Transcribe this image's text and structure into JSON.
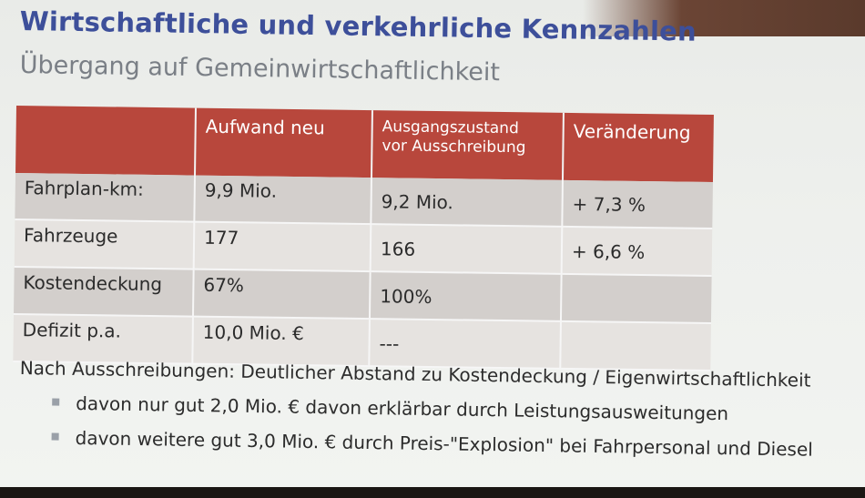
{
  "slide": {
    "title": "Wirtschaftliche und verkehrliche Kennzahlen",
    "subtitle": "Übergang auf Gemeinwirtschaftlichkeit"
  },
  "table": {
    "headers": {
      "label": "",
      "neu": "Aufwand neu",
      "alt_line1": "Ausgangszustand",
      "alt_line2": "vor Ausschreibung",
      "chg": "Veränderung"
    },
    "rows": [
      {
        "label": "Fahrplan-km:",
        "neu": "9,9 Mio.",
        "alt": "9,2 Mio.",
        "chg": "+ 7,3 %"
      },
      {
        "label": "Fahrzeuge",
        "neu": "177",
        "alt": "166",
        "chg": "+ 6,6 %"
      },
      {
        "label": "Kostendeckung",
        "neu": "67%",
        "alt": "100%",
        "chg": ""
      },
      {
        "label": "Defizit p.a.",
        "neu": "10,0 Mio. €",
        "alt": "---",
        "chg": ""
      }
    ]
  },
  "notes": {
    "intro": "Nach Ausschreibungen: Deutlicher Abstand zu Kostendeckung / Eigenwirtschaftlichkeit",
    "bullets": [
      "davon nur gut 2,0 Mio. € davon erklärbar durch Leistungsausweitungen",
      "davon weitere gut 3,0 Mio. € durch Preis-\"Explosion\" bei Fahrpersonal und Diesel"
    ]
  }
}
